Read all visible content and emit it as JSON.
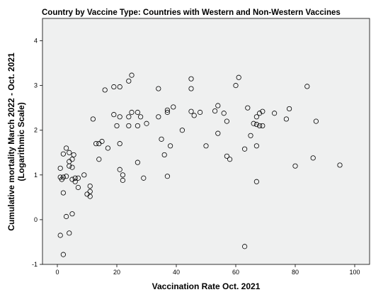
{
  "chart_data": {
    "type": "scatter",
    "title": "Country by Vaccine Type: Countries with Western and Non-Western Vaccines",
    "xlabel": "Vaccination Rate Oct. 2021",
    "ylabel_line1": "Cumulative mortality March 2022 - Oct. 2021",
    "ylabel_line2": "(Logarithmic Scale)",
    "xlim": [
      -5,
      105
    ],
    "ylim": [
      -1,
      4.5
    ],
    "xticks": [
      0,
      20,
      40,
      60,
      80,
      100
    ],
    "yticks": [
      -1,
      0,
      1,
      2,
      3,
      4
    ],
    "xtick_labels": [
      "0",
      "20",
      "40",
      "60",
      "80",
      "100"
    ],
    "ytick_labels": [
      "-1",
      "0",
      "1",
      "2",
      "3",
      "4"
    ],
    "grid": false,
    "legend": "none",
    "marker_color": "#000000",
    "background_color": "#eff0f0",
    "points": [
      {
        "x": 1,
        "y": -0.35
      },
      {
        "x": 2,
        "y": -0.78
      },
      {
        "x": 4,
        "y": -0.3
      },
      {
        "x": 5,
        "y": 0.13
      },
      {
        "x": 3,
        "y": 0.07
      },
      {
        "x": 2,
        "y": 0.6
      },
      {
        "x": 7,
        "y": 0.72
      },
      {
        "x": 10,
        "y": 0.57
      },
      {
        "x": 11,
        "y": 0.52
      },
      {
        "x": 11,
        "y": 0.75
      },
      {
        "x": 11,
        "y": 0.63
      },
      {
        "x": 1.5,
        "y": 0.9
      },
      {
        "x": 1,
        "y": 0.95
      },
      {
        "x": 2,
        "y": 0.95
      },
      {
        "x": 3,
        "y": 0.97
      },
      {
        "x": 5,
        "y": 0.9
      },
      {
        "x": 6,
        "y": 0.85
      },
      {
        "x": 6,
        "y": 0.93
      },
      {
        "x": 9,
        "y": 1.0
      },
      {
        "x": 7,
        "y": 0.93
      },
      {
        "x": 1,
        "y": 1.15
      },
      {
        "x": 4,
        "y": 1.2
      },
      {
        "x": 5,
        "y": 1.17
      },
      {
        "x": 2,
        "y": 1.47
      },
      {
        "x": 3,
        "y": 1.6
      },
      {
        "x": 4,
        "y": 1.5
      },
      {
        "x": 5,
        "y": 1.35
      },
      {
        "x": 5.5,
        "y": 1.45
      },
      {
        "x": 4,
        "y": 1.3
      },
      {
        "x": 13,
        "y": 1.7
      },
      {
        "x": 14,
        "y": 1.7
      },
      {
        "x": 15,
        "y": 1.75
      },
      {
        "x": 17,
        "y": 1.6
      },
      {
        "x": 14,
        "y": 1.35
      },
      {
        "x": 12,
        "y": 2.25
      },
      {
        "x": 19,
        "y": 2.35
      },
      {
        "x": 20,
        "y": 2.1
      },
      {
        "x": 21,
        "y": 2.3
      },
      {
        "x": 16,
        "y": 2.9
      },
      {
        "x": 19,
        "y": 2.97
      },
      {
        "x": 21,
        "y": 2.97
      },
      {
        "x": 24,
        "y": 3.1
      },
      {
        "x": 25,
        "y": 3.23
      },
      {
        "x": 21,
        "y": 1.7
      },
      {
        "x": 21,
        "y": 1.12
      },
      {
        "x": 22,
        "y": 1.0
      },
      {
        "x": 22,
        "y": 0.88
      },
      {
        "x": 24,
        "y": 2.1
      },
      {
        "x": 24,
        "y": 2.3
      },
      {
        "x": 25,
        "y": 2.4
      },
      {
        "x": 27,
        "y": 2.4
      },
      {
        "x": 27,
        "y": 1.28
      },
      {
        "x": 28,
        "y": 2.3
      },
      {
        "x": 30,
        "y": 2.15
      },
      {
        "x": 29,
        "y": 0.93
      },
      {
        "x": 27,
        "y": 2.1
      },
      {
        "x": 34,
        "y": 2.3
      },
      {
        "x": 34,
        "y": 2.93
      },
      {
        "x": 35,
        "y": 1.8
      },
      {
        "x": 36,
        "y": 1.45
      },
      {
        "x": 37,
        "y": 2.45
      },
      {
        "x": 37,
        "y": 2.4
      },
      {
        "x": 38,
        "y": 1.65
      },
      {
        "x": 39,
        "y": 2.52
      },
      {
        "x": 37,
        "y": 0.97
      },
      {
        "x": 42,
        "y": 2.0
      },
      {
        "x": 45,
        "y": 3.15
      },
      {
        "x": 45,
        "y": 2.93
      },
      {
        "x": 45,
        "y": 2.42
      },
      {
        "x": 46,
        "y": 2.33
      },
      {
        "x": 48,
        "y": 2.4
      },
      {
        "x": 50,
        "y": 1.65
      },
      {
        "x": 53,
        "y": 2.43
      },
      {
        "x": 54,
        "y": 2.55
      },
      {
        "x": 54,
        "y": 1.93
      },
      {
        "x": 56,
        "y": 2.38
      },
      {
        "x": 57,
        "y": 2.2
      },
      {
        "x": 57,
        "y": 1.42
      },
      {
        "x": 58,
        "y": 1.35
      },
      {
        "x": 60,
        "y": 3.0
      },
      {
        "x": 61,
        "y": 3.18
      },
      {
        "x": 63,
        "y": 1.58
      },
      {
        "x": 64,
        "y": 2.5
      },
      {
        "x": 65,
        "y": 1.88
      },
      {
        "x": 63,
        "y": -0.6
      },
      {
        "x": 66,
        "y": 2.15
      },
      {
        "x": 67,
        "y": 2.13
      },
      {
        "x": 67,
        "y": 2.3
      },
      {
        "x": 68,
        "y": 2.1
      },
      {
        "x": 68,
        "y": 2.38
      },
      {
        "x": 69,
        "y": 2.42
      },
      {
        "x": 69,
        "y": 2.1
      },
      {
        "x": 67,
        "y": 1.65
      },
      {
        "x": 67,
        "y": 0.85
      },
      {
        "x": 73,
        "y": 2.38
      },
      {
        "x": 77,
        "y": 2.25
      },
      {
        "x": 78,
        "y": 2.48
      },
      {
        "x": 80,
        "y": 1.2
      },
      {
        "x": 84,
        "y": 2.98
      },
      {
        "x": 86,
        "y": 1.38
      },
      {
        "x": 87,
        "y": 2.2
      },
      {
        "x": 95,
        "y": 1.22
      }
    ]
  }
}
